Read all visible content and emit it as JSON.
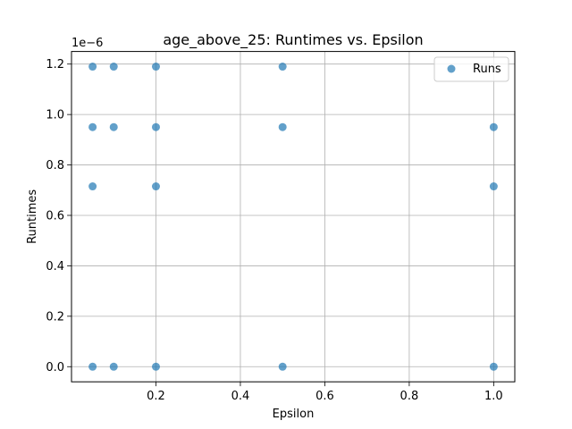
{
  "chart_data": {
    "type": "scatter",
    "title": "age_above_25: Runtimes vs. Epsilon",
    "xlabel": "Epsilon",
    "ylabel": "Runtimes",
    "y_scale_label": "1e−6",
    "xlim": [
      0.0,
      1.05
    ],
    "ylim": [
      -0.06,
      1.25
    ],
    "x_ticks": [
      0.2,
      0.4,
      0.6,
      0.8,
      1.0
    ],
    "x_tick_labels": [
      "0.2",
      "0.4",
      "0.6",
      "0.8",
      "1.0"
    ],
    "y_ticks": [
      0.0,
      0.2,
      0.4,
      0.6,
      0.8,
      1.0,
      1.2
    ],
    "y_tick_labels": [
      "0.0",
      "0.2",
      "0.4",
      "0.6",
      "0.8",
      "1.0",
      "1.2"
    ],
    "grid": true,
    "legend_position": "top-right",
    "marker_color": "#1f77b4",
    "series": [
      {
        "name": "Runs",
        "points": [
          {
            "x": 0.05,
            "y": 1.19
          },
          {
            "x": 0.05,
            "y": 0.95
          },
          {
            "x": 0.05,
            "y": 0.715
          },
          {
            "x": 0.05,
            "y": 0.0
          },
          {
            "x": 0.1,
            "y": 1.19
          },
          {
            "x": 0.1,
            "y": 0.95
          },
          {
            "x": 0.1,
            "y": 0.0
          },
          {
            "x": 0.2,
            "y": 1.19
          },
          {
            "x": 0.2,
            "y": 0.95
          },
          {
            "x": 0.2,
            "y": 0.715
          },
          {
            "x": 0.2,
            "y": 0.0
          },
          {
            "x": 0.5,
            "y": 1.19
          },
          {
            "x": 0.5,
            "y": 0.95
          },
          {
            "x": 0.5,
            "y": 0.0
          },
          {
            "x": 1.0,
            "y": 0.95
          },
          {
            "x": 1.0,
            "y": 0.715
          },
          {
            "x": 1.0,
            "y": 0.0
          }
        ]
      }
    ]
  }
}
